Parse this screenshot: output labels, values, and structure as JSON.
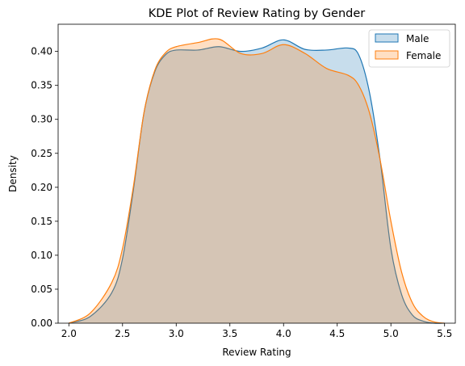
{
  "chart_data": {
    "type": "area",
    "title": "KDE Plot of Review Rating by Gender",
    "xlabel": "Review Rating",
    "ylabel": "Density",
    "xlim": [
      1.9,
      5.6
    ],
    "ylim": [
      0.0,
      0.44
    ],
    "xticks": [
      "2.0",
      "2.5",
      "3.0",
      "3.5",
      "4.0",
      "4.5",
      "5.0",
      "5.5"
    ],
    "yticks": [
      "0.00",
      "0.05",
      "0.10",
      "0.15",
      "0.20",
      "0.25",
      "0.30",
      "0.35",
      "0.40"
    ],
    "legend_placement": "top-right",
    "grid": false,
    "series": [
      {
        "name": "Male",
        "color": "#1f77b4",
        "x": [
          2.0,
          2.2,
          2.4,
          2.5,
          2.6,
          2.7,
          2.8,
          2.9,
          3.0,
          3.2,
          3.4,
          3.6,
          3.8,
          4.0,
          4.2,
          4.4,
          4.6,
          4.7,
          4.8,
          4.9,
          5.0,
          5.1,
          5.2,
          5.3,
          5.4,
          5.5
        ],
        "y": [
          0.0,
          0.01,
          0.045,
          0.095,
          0.195,
          0.31,
          0.37,
          0.395,
          0.402,
          0.402,
          0.407,
          0.4,
          0.405,
          0.417,
          0.403,
          0.402,
          0.405,
          0.395,
          0.34,
          0.24,
          0.11,
          0.042,
          0.012,
          0.003,
          0.0,
          0.0
        ]
      },
      {
        "name": "Female",
        "color": "#ff7f0e",
        "x": [
          2.0,
          2.2,
          2.4,
          2.5,
          2.6,
          2.7,
          2.8,
          2.9,
          3.0,
          3.2,
          3.4,
          3.6,
          3.8,
          4.0,
          4.2,
          4.4,
          4.6,
          4.7,
          4.8,
          4.9,
          5.0,
          5.1,
          5.2,
          5.3,
          5.4,
          5.5
        ],
        "y": [
          0.0,
          0.015,
          0.06,
          0.11,
          0.2,
          0.31,
          0.372,
          0.398,
          0.407,
          0.413,
          0.418,
          0.397,
          0.397,
          0.41,
          0.397,
          0.375,
          0.365,
          0.35,
          0.31,
          0.24,
          0.15,
          0.075,
          0.03,
          0.01,
          0.002,
          0.0
        ]
      }
    ]
  }
}
